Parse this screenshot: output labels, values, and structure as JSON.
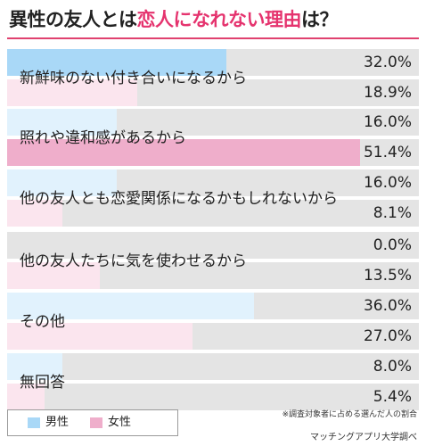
{
  "title": {
    "prefix": "異性の友人とは",
    "highlight": "恋人になれない理由",
    "suffix": "は？"
  },
  "chart_data": {
    "type": "bar",
    "orientation": "horizontal",
    "xlim": [
      0,
      60
    ],
    "categories": [
      "新鮮味のない付き合いになるから",
      "照れや違和感があるから",
      "他の友人とも恋愛関係になるかもしれないから",
      "他の友人たちに気を使わせるから",
      "その他",
      "無回答"
    ],
    "series": [
      {
        "name": "男性",
        "color": "#a9d8f7",
        "values": [
          32.0,
          16.0,
          16.0,
          0.0,
          36.0,
          8.0
        ]
      },
      {
        "name": "女性",
        "color": "#efaecb",
        "values": [
          18.9,
          51.4,
          8.1,
          13.5,
          27.0,
          5.4
        ]
      }
    ],
    "value_labels": [
      [
        "32.0%",
        "18.9%"
      ],
      [
        "16.0%",
        "51.4%"
      ],
      [
        "16.0%",
        "8.1%"
      ],
      [
        "0.0%",
        "13.5%"
      ],
      [
        "36.0%",
        "27.0%"
      ],
      [
        "8.0%",
        "5.4%"
      ]
    ],
    "legend": {
      "male": "男性",
      "female": "女性",
      "placement": "bottom-left"
    }
  },
  "note": "※調査対象者に占める選んだ人の割合",
  "source": "マッチングアプリ大学調べ",
  "colors": {
    "male_light": "#e1f2fd",
    "female_light": "#fbe5ee",
    "track": "#e4e4e4",
    "accent": "#e5336e"
  }
}
